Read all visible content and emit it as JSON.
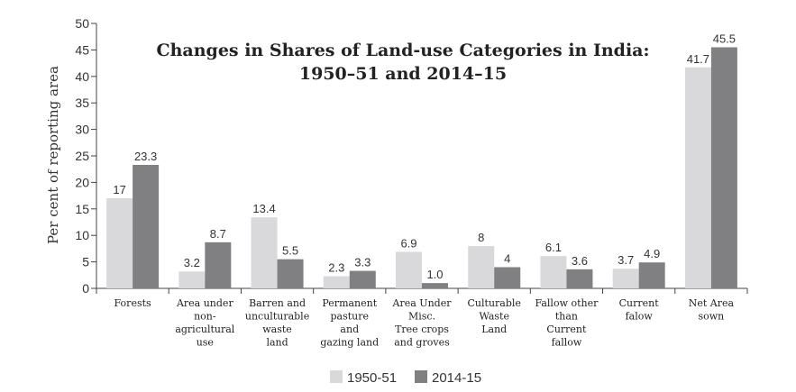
{
  "chart_data": {
    "type": "bar",
    "title_lines": [
      "Changes in Shares of Land-use Categories in India:",
      "1950–51 and 2014–15"
    ],
    "xlabel": "",
    "ylabel": "Per cent of reporting area",
    "ylim": [
      0,
      50
    ],
    "yticks": [
      0,
      5,
      10,
      15,
      20,
      25,
      30,
      35,
      40,
      45,
      50
    ],
    "grid": false,
    "legend_position": "bottom",
    "categories": [
      [
        "Forests"
      ],
      [
        "Area under",
        "non-",
        "agricultural",
        "use"
      ],
      [
        "Barren and",
        "unculturable",
        "waste",
        "land"
      ],
      [
        "Permanent",
        "pasture",
        "and",
        "gazing land"
      ],
      [
        "Area Under",
        "Misc.",
        "Tree crops",
        "and groves"
      ],
      [
        "Culturable",
        "Waste",
        "Land"
      ],
      [
        "Fallow other",
        "than",
        "Current",
        "fallow"
      ],
      [
        "Current",
        "falow"
      ],
      [
        "Net Area",
        "sown"
      ]
    ],
    "series": [
      {
        "name": "1950-51",
        "color": "#d9d9db",
        "values": [
          17,
          3.2,
          13.4,
          2.3,
          6.9,
          8,
          6.1,
          3.7,
          41.7
        ],
        "labels": [
          "17",
          "3.2",
          "13.4",
          "2.3",
          "6.9",
          "8",
          "6.1",
          "3.7",
          "41.7"
        ]
      },
      {
        "name": "2014-15",
        "color": "#808083",
        "values": [
          23.3,
          8.7,
          5.5,
          3.3,
          1.0,
          4,
          3.6,
          4.9,
          45.5
        ],
        "labels": [
          "23.3",
          "8.7",
          "5.5",
          "3.3",
          "1.0",
          "4",
          "3.6",
          "4.9",
          "45.5"
        ]
      }
    ]
  }
}
